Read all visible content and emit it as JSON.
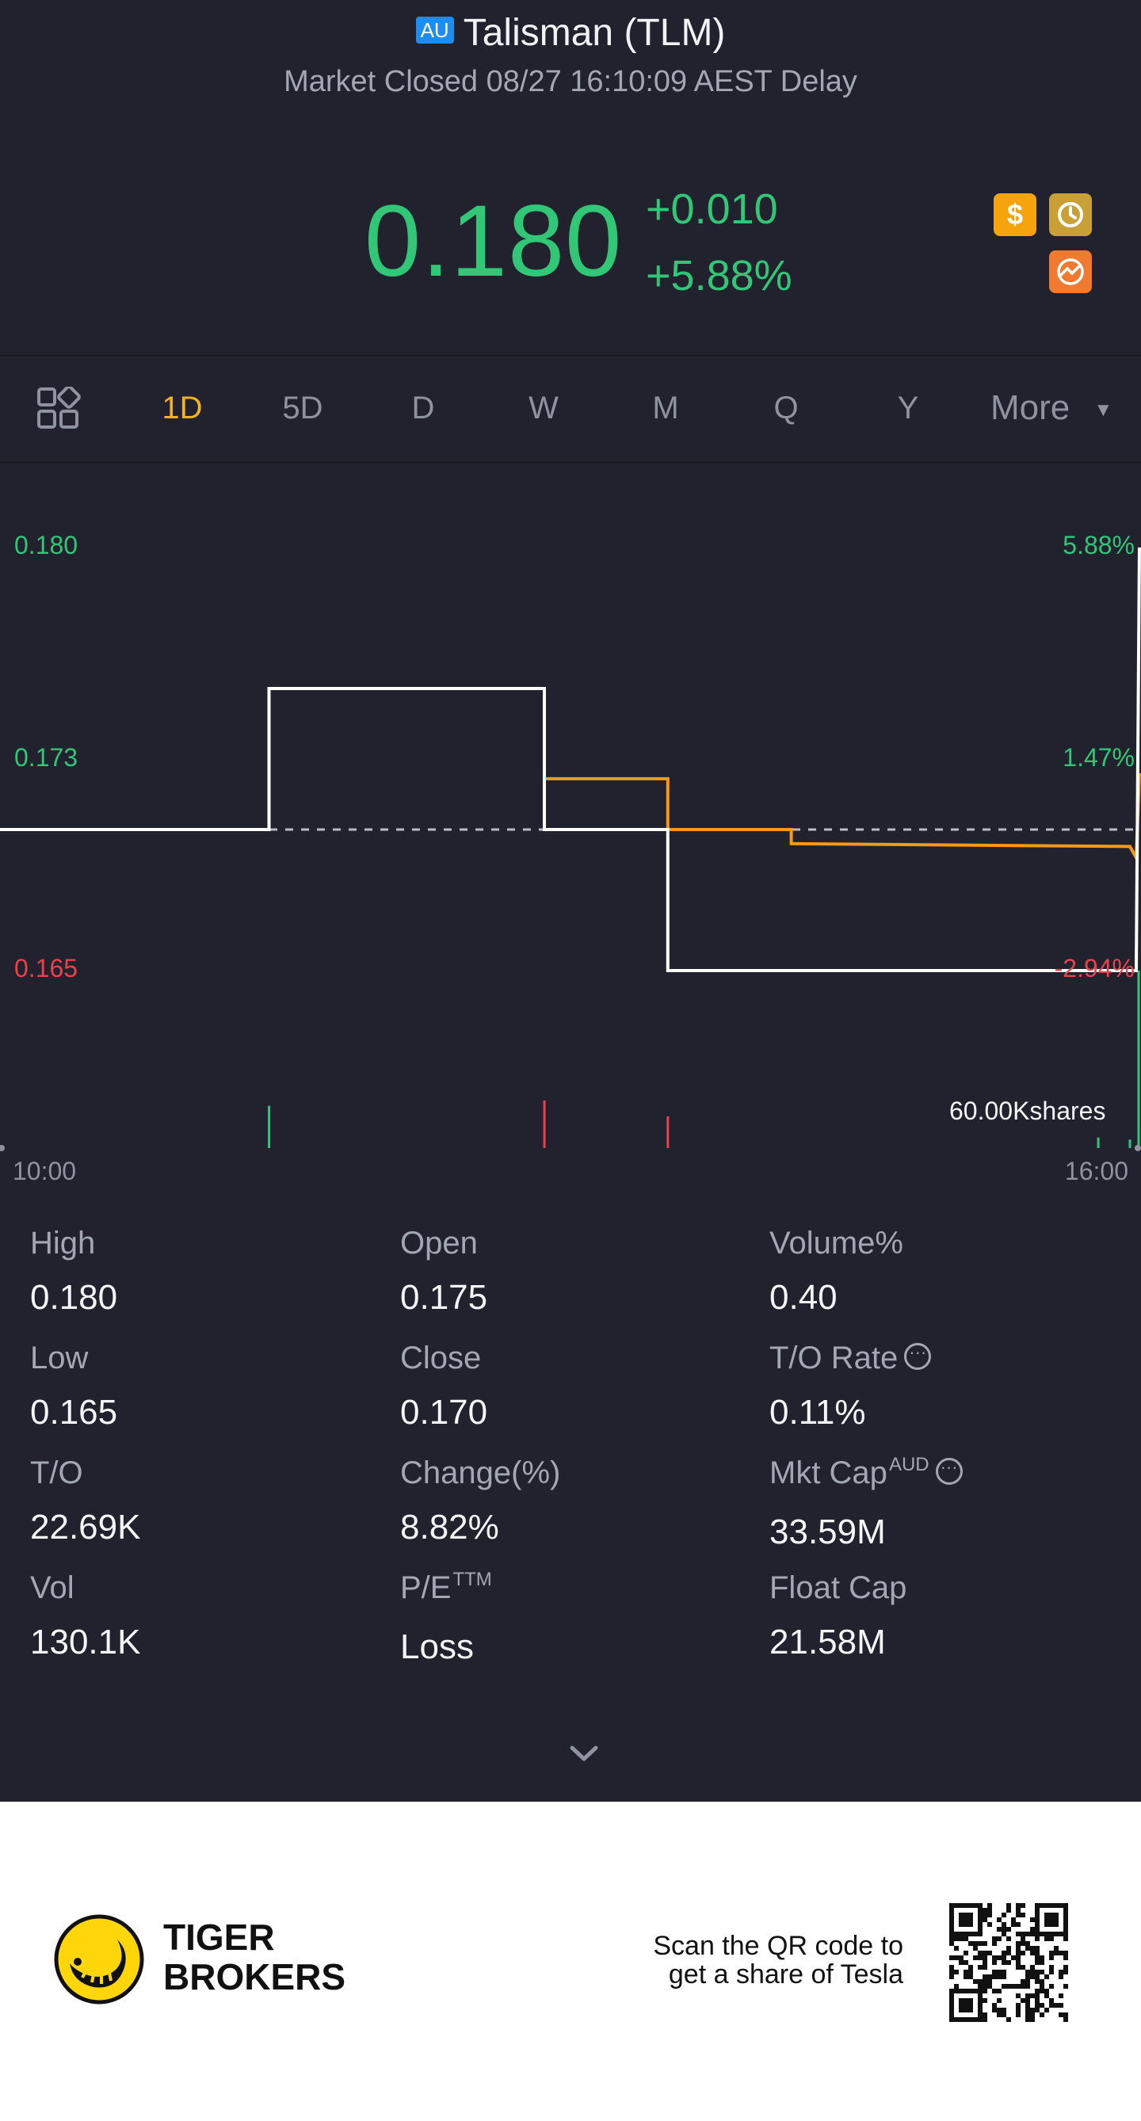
{
  "header": {
    "market_badge": "AU",
    "title": "Talisman (TLM)",
    "status": "Market Closed 08/27 16:10:09 AEST Delay"
  },
  "quote": {
    "price": "0.180",
    "change": "+0.010",
    "change_pct": "+5.88%",
    "icon_dollar": "$",
    "colors": {
      "up": "#31c777",
      "down": "#e8424c",
      "accent": "#f0b323"
    }
  },
  "icons": [
    "grid-layout-icon",
    "dollar-icon",
    "history-clock-icon",
    "chart-badge-icon",
    "chevron-down-icon",
    "tiger-logo-icon",
    "qr-code-icon"
  ],
  "tabs": {
    "items": [
      "1D",
      "5D",
      "D",
      "W",
      "M",
      "Q",
      "Y"
    ],
    "active": "1D",
    "more_label": "More"
  },
  "chart": {
    "left_axis": [
      "0.180",
      "0.173",
      "0.165"
    ],
    "right_axis": [
      "5.88%",
      "1.47%",
      "-2.94%"
    ],
    "volume_label": "60.00Kshares",
    "time_start": "10:00",
    "time_end": "16:00"
  },
  "chart_data": {
    "type": "line",
    "x_range": [
      "10:00",
      "16:00"
    ],
    "ylim": [
      0.165,
      0.18
    ],
    "prev_close": 0.17,
    "series": [
      {
        "values_desc": "price",
        "points": [
          [
            "10:00",
            0.17
          ],
          [
            "11:25",
            0.17
          ],
          [
            "11:25",
            0.175
          ],
          [
            "12:52",
            0.175
          ],
          [
            "12:52",
            0.17
          ],
          [
            "13:31",
            0.17
          ],
          [
            "13:31",
            0.165
          ],
          [
            "15:59",
            0.165
          ],
          [
            "16:00",
            0.18
          ]
        ]
      },
      {
        "values_desc": "average",
        "points": [
          [
            "10:00",
            0.17
          ],
          [
            "11:25",
            0.17
          ],
          [
            "11:25",
            0.175
          ],
          [
            "12:52",
            0.175
          ],
          [
            "12:52",
            0.1718
          ],
          [
            "13:31",
            0.1718
          ],
          [
            "13:31",
            0.17
          ],
          [
            "14:10",
            0.17
          ],
          [
            "14:10",
            0.1695
          ],
          [
            "15:57",
            0.1694
          ],
          [
            "15:59",
            0.169
          ],
          [
            "16:00",
            0.172
          ]
        ]
      }
    ],
    "volume_bars": [
      {
        "time": "11:25",
        "dir": "up",
        "value": 40000
      },
      {
        "time": "12:52",
        "dir": "down",
        "value": 45000
      },
      {
        "time": "13:31",
        "dir": "down",
        "value": 30000
      },
      {
        "time": "15:47",
        "dir": "up",
        "value": 10000
      },
      {
        "time": "15:57",
        "dir": "up",
        "value": 8000
      },
      {
        "time": "16:00",
        "dir": "up",
        "value": 60000
      }
    ]
  },
  "stats": {
    "high_label": "High",
    "high": "0.180",
    "low_label": "Low",
    "low": "0.165",
    "to_label": "T/O",
    "to": "22.69K",
    "vol_label": "Vol",
    "vol": "130.1K",
    "open_label": "Open",
    "open": "0.175",
    "close_label": "Close",
    "close": "0.170",
    "change_label": "Change(%)",
    "change": "8.82%",
    "pe_label": "P/E",
    "pe_sup": "TTM",
    "pe": "Loss",
    "volpct_label": "Volume%",
    "volpct": "0.40",
    "torate_label": "T/O Rate",
    "torate": "0.11%",
    "mktcap_label": "Mkt Cap",
    "mktcap_sup": "AUD",
    "mktcap": "33.59M",
    "floatcap_label": "Float Cap",
    "floatcap": "21.58M"
  },
  "footer": {
    "brand_line1": "TIGER",
    "brand_line2": "BROKERS",
    "promo_line1": "Scan the QR code to",
    "promo_line2": "get a share of Tesla"
  }
}
